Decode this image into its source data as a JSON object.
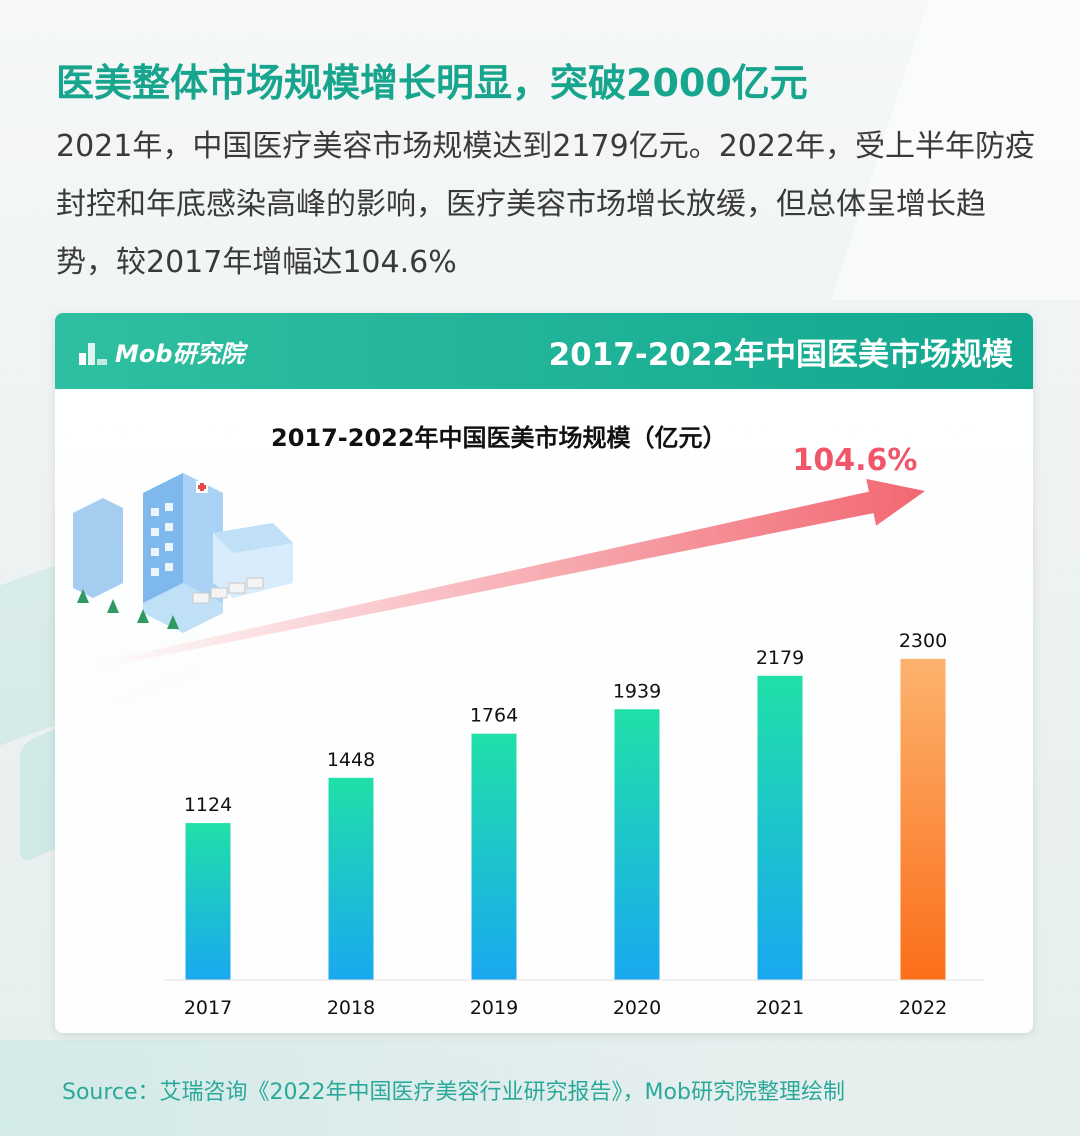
{
  "headline": "医美整体市场规模增长明显，突破2000亿元",
  "intro": "2021年，中国医疗美容市场规模达到2179亿元。2022年，受上半年防疫封控和年底感染高峰的影响，医疗美容市场增长放缓，但总体呈增长趋势，较2017年增幅达104.6%",
  "card": {
    "logo_text": "Mob研究院",
    "title": "2017-2022年中国医美市场规模"
  },
  "chart_data": {
    "type": "bar",
    "title": "2017-2022年中国医美市场规模（亿元）",
    "categories": [
      "2017",
      "2018",
      "2019",
      "2020",
      "2021",
      "2022"
    ],
    "values": [
      1124,
      1448,
      1764,
      1939,
      2179,
      2300
    ],
    "ylim": [
      0,
      2650
    ],
    "grid": false,
    "highlight_category": "2022",
    "growth_annotation": "104.6%",
    "colors": {
      "bar_top": "#20e0a8",
      "bar_bottom": "#1aa8f0",
      "highlight_top": "#fcb36e",
      "highlight_bottom": "#fb6e1a",
      "arrow": "#f26772",
      "annotation": "#f0566a"
    }
  },
  "illustration": "hospital-illustration",
  "source": "Source：艾瑞咨询《2022年中国医疗美容行业研究报告》，Mob研究院整理绘制"
}
